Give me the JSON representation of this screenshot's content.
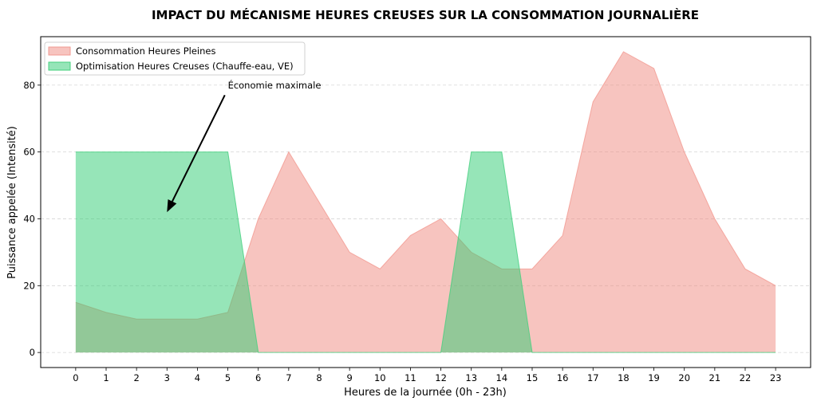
{
  "chart_data": {
    "type": "area",
    "title": "IMPACT DU MÉCANISME HEURES CREUSES SUR LA CONSOMMATION JOURNALIÈRE",
    "xlabel": "Heures de la journée (0h - 23h)",
    "ylabel": "Puissance appelée (Intensité)",
    "x": [
      0,
      1,
      2,
      3,
      4,
      5,
      6,
      7,
      8,
      9,
      10,
      11,
      12,
      13,
      14,
      15,
      16,
      17,
      18,
      19,
      20,
      21,
      22,
      23
    ],
    "xlim": [
      -1.15,
      24.15
    ],
    "ylim": [
      -4.5,
      94.5
    ],
    "yticks": [
      0,
      20,
      40,
      60,
      80
    ],
    "grid": "horizontal dashed",
    "legend_position": "top-left",
    "series": [
      {
        "name": "Consommation Heures Pleines",
        "color": "#f08a80",
        "edge_color": "#f29990",
        "values": [
          15,
          12,
          10,
          10,
          10,
          12,
          40,
          60,
          45,
          30,
          25,
          35,
          40,
          30,
          25,
          25,
          35,
          75,
          90,
          85,
          60,
          40,
          25,
          20
        ]
      },
      {
        "name": "Optimisation Heures Creuses (Chauffe-eau, VE)",
        "color": "#2ecc71",
        "edge_color": "#44d07e",
        "values": [
          60,
          60,
          60,
          60,
          60,
          60,
          0,
          0,
          0,
          0,
          0,
          0,
          0,
          60,
          60,
          0,
          0,
          0,
          0,
          0,
          0,
          0,
          0,
          0
        ]
      }
    ],
    "annotation": {
      "text": "Économie maximale",
      "text_x": 5,
      "text_y": 80,
      "arrow_from_x": 4.9,
      "arrow_from_y": 77,
      "arrow_to_x": 3.0,
      "arrow_to_y": 42
    }
  }
}
